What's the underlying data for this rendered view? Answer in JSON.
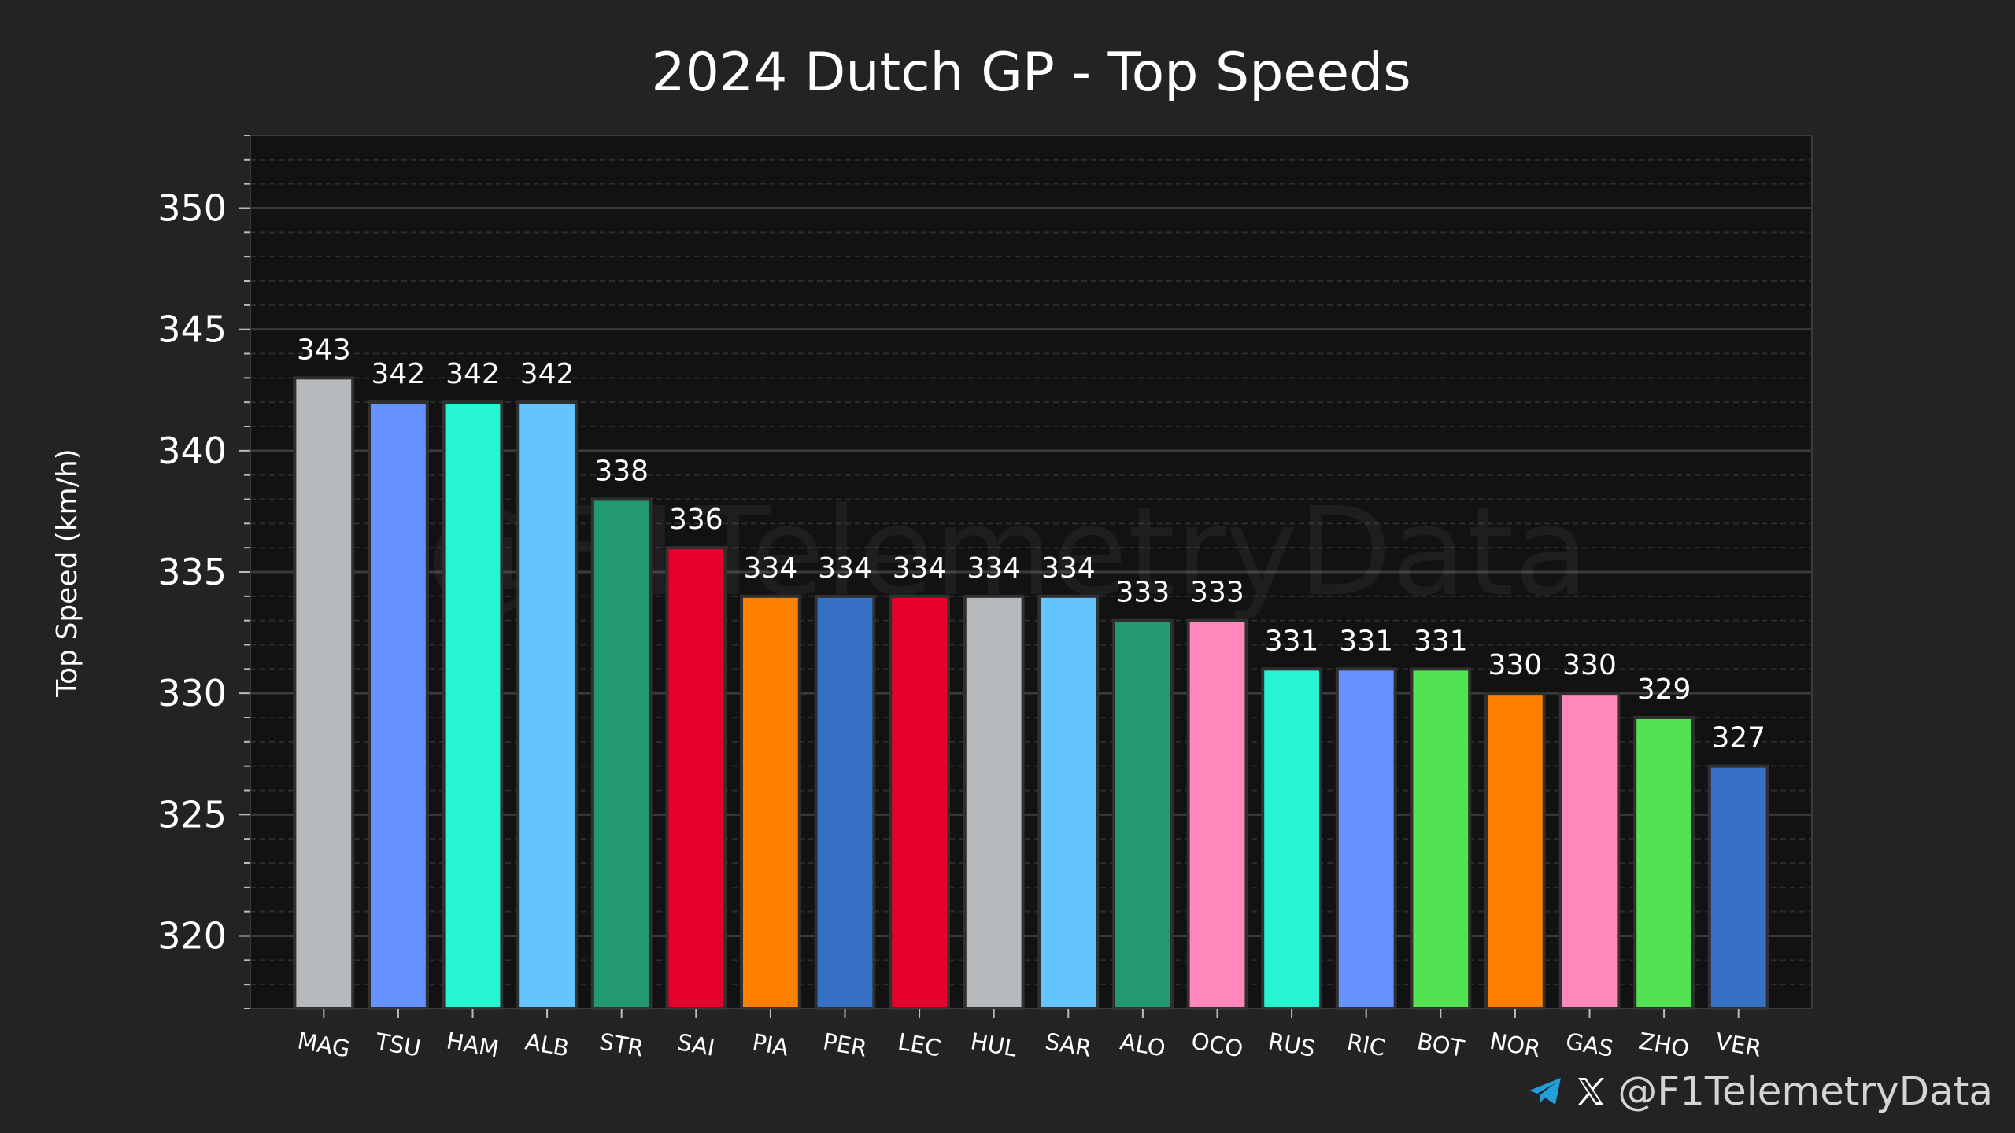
{
  "chart_data": {
    "type": "bar",
    "title": "2024 Dutch GP - Top Speeds",
    "xlabel": "",
    "ylabel": "Top Speed (km/h)",
    "ylim": [
      317,
      353
    ],
    "yticks": [
      320,
      325,
      330,
      335,
      340,
      345,
      350
    ],
    "ytick_labels": [
      "320",
      "325",
      "330",
      "335",
      "340",
      "345",
      "350"
    ],
    "minor_tick_step": 1,
    "grid": true,
    "categories": [
      "MAG",
      "TSU",
      "HAM",
      "ALB",
      "STR",
      "SAI",
      "PIA",
      "PER",
      "LEC",
      "HUL",
      "SAR",
      "ALO",
      "OCO",
      "RUS",
      "RIC",
      "BOT",
      "NOR",
      "GAS",
      "ZHO",
      "VER"
    ],
    "values": [
      343,
      342,
      342,
      342,
      338,
      336,
      334,
      334,
      334,
      334,
      334,
      333,
      333,
      331,
      331,
      331,
      330,
      330,
      329,
      327
    ],
    "value_labels": [
      "343",
      "342",
      "342",
      "342",
      "338",
      "336",
      "334",
      "334",
      "334",
      "334",
      "334",
      "333",
      "333",
      "331",
      "331",
      "331",
      "330",
      "330",
      "329",
      "327"
    ],
    "colors": [
      "#b6babd",
      "#6692ff",
      "#27f4d2",
      "#64c4ff",
      "#229971",
      "#e8002d",
      "#ff8000",
      "#3671c6",
      "#e8002d",
      "#b6babd",
      "#64c4ff",
      "#229971",
      "#ff87bc",
      "#27f4d2",
      "#6692ff",
      "#52e252",
      "#ff8000",
      "#ff87bc",
      "#52e252",
      "#3671c6"
    ],
    "watermark": "@F1TelemetryData"
  },
  "footer": {
    "handle": "@F1TelemetryData",
    "icons": [
      "telegram-icon",
      "x-icon"
    ],
    "telegram_color": "#229ed9"
  },
  "theme": {
    "figure_bg": "#232323",
    "plot_bg": "#121212",
    "grid_color": "#3a3a3a",
    "text_color": "#ffffff",
    "bar_edge": "#303030"
  }
}
